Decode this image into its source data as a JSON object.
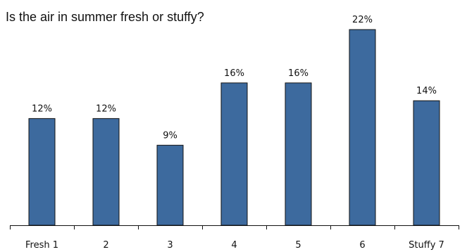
{
  "chart_data": {
    "type": "bar",
    "title": "Is the air in summer fresh or stuffy?",
    "categories": [
      "Fresh 1",
      "2",
      "3",
      "4",
      "5",
      "6",
      "Stuffy 7"
    ],
    "values": [
      12,
      12,
      9,
      16,
      16,
      22,
      14
    ],
    "data_labels": [
      "12%",
      "12%",
      "9%",
      "16%",
      "16%",
      "22%",
      "14%"
    ],
    "unit": "%",
    "xlabel": "",
    "ylabel": "",
    "ylim": [
      0,
      22
    ],
    "grid": false,
    "legend": "none",
    "bar_color": "#3d6a9e",
    "bar_edge_color": "#111111"
  }
}
